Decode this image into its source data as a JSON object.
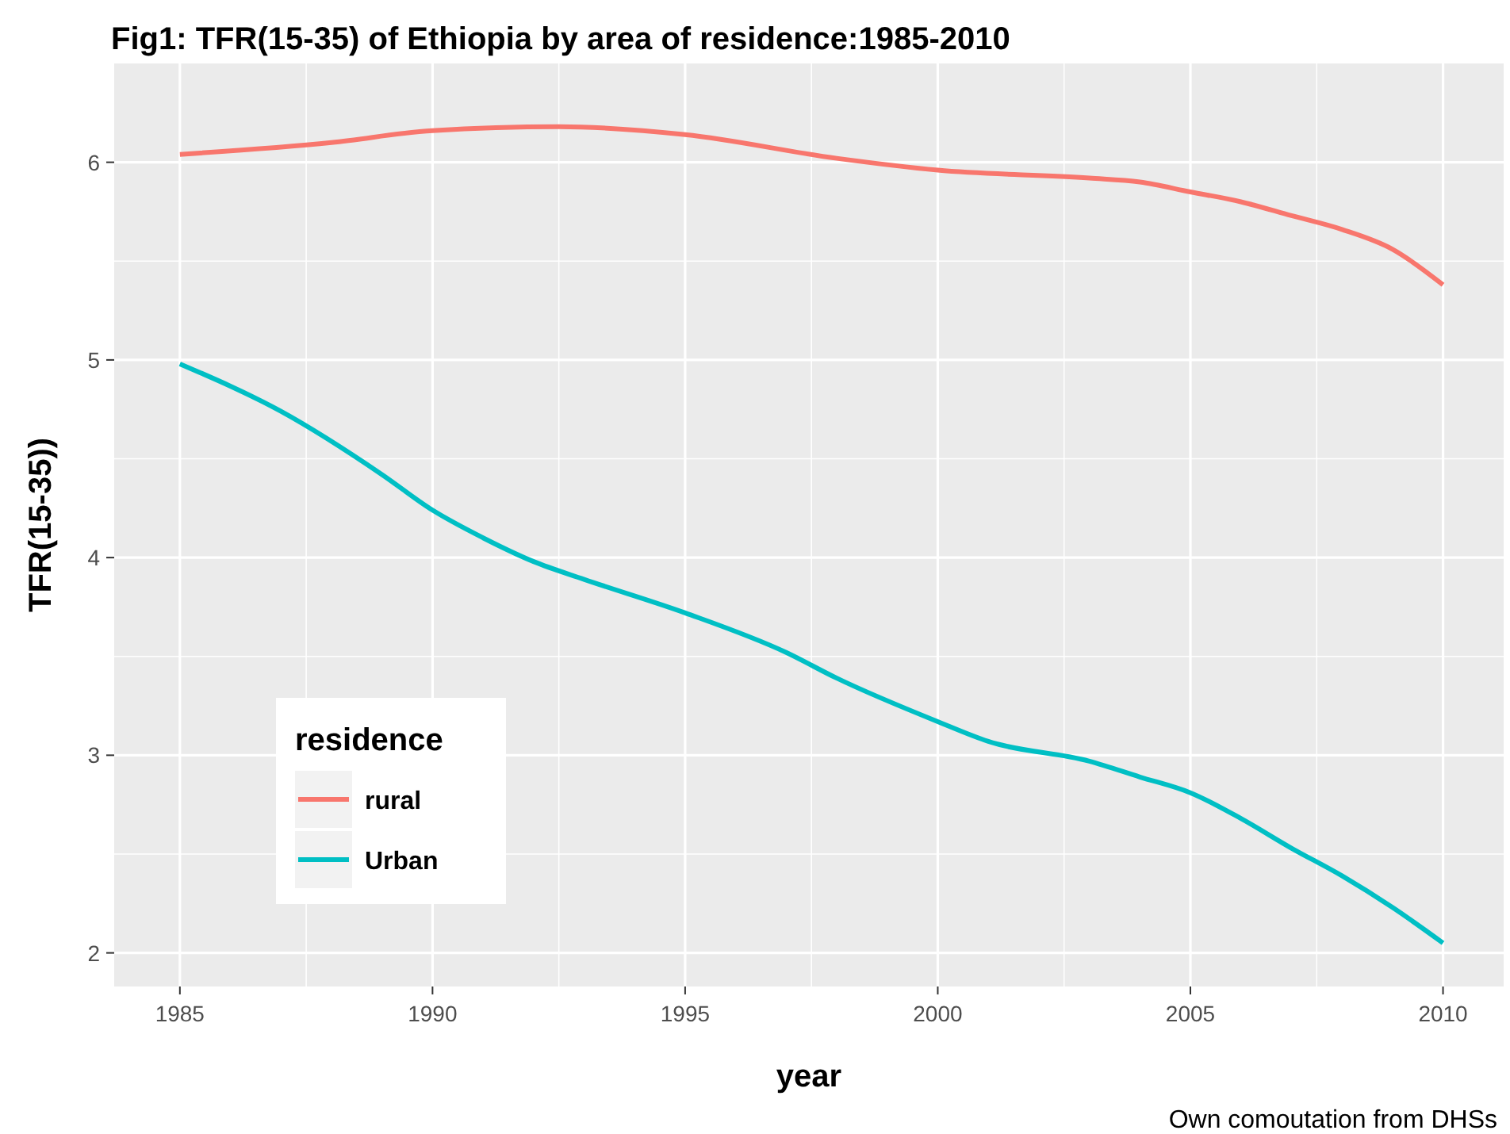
{
  "chart_data": {
    "type": "line",
    "title": "Fig1: TFR(15-35) of Ethiopia by area of residence:1985-2010",
    "xlabel": "year",
    "ylabel": "TFR(15-35))",
    "legend_title": "residence",
    "annotations": [
      "Own comoutation from DHSs"
    ],
    "x": [
      1985,
      1987,
      1989,
      1990,
      1991,
      1992,
      1993,
      1995,
      1997,
      1998,
      2000,
      2001,
      2003,
      2004,
      2005,
      2006,
      2007,
      2008,
      2009,
      2010
    ],
    "series": [
      {
        "name": "rural",
        "color": "#f8766d",
        "x": [
          1985,
          1988,
          1990,
          1992.5,
          1995,
          1998,
          2000,
          2003,
          2004,
          2005,
          2006,
          2007,
          2008,
          2009,
          2010
        ],
        "values": [
          6.04,
          6.1,
          6.16,
          6.18,
          6.14,
          6.02,
          5.96,
          5.92,
          5.9,
          5.85,
          5.8,
          5.73,
          5.66,
          5.56,
          5.38
        ]
      },
      {
        "name": "Urban",
        "color": "#00bfc4",
        "values": [
          4.98,
          4.74,
          4.42,
          4.24,
          4.1,
          3.98,
          3.89,
          3.72,
          3.52,
          3.39,
          3.17,
          3.07,
          2.97,
          2.89,
          2.81,
          2.68,
          2.53,
          2.39,
          2.23,
          2.05
        ]
      }
    ],
    "xlim": [
      1983.7,
      2011.2
    ],
    "xticks": [
      1985,
      1990,
      1995,
      2000,
      2005,
      2010
    ],
    "ylim": [
      1.83,
      6.5
    ],
    "yticks": [
      2,
      3,
      4,
      5,
      6
    ],
    "grid": true,
    "legend": "bottom left",
    "marker": "none",
    "line_style": "solid"
  }
}
